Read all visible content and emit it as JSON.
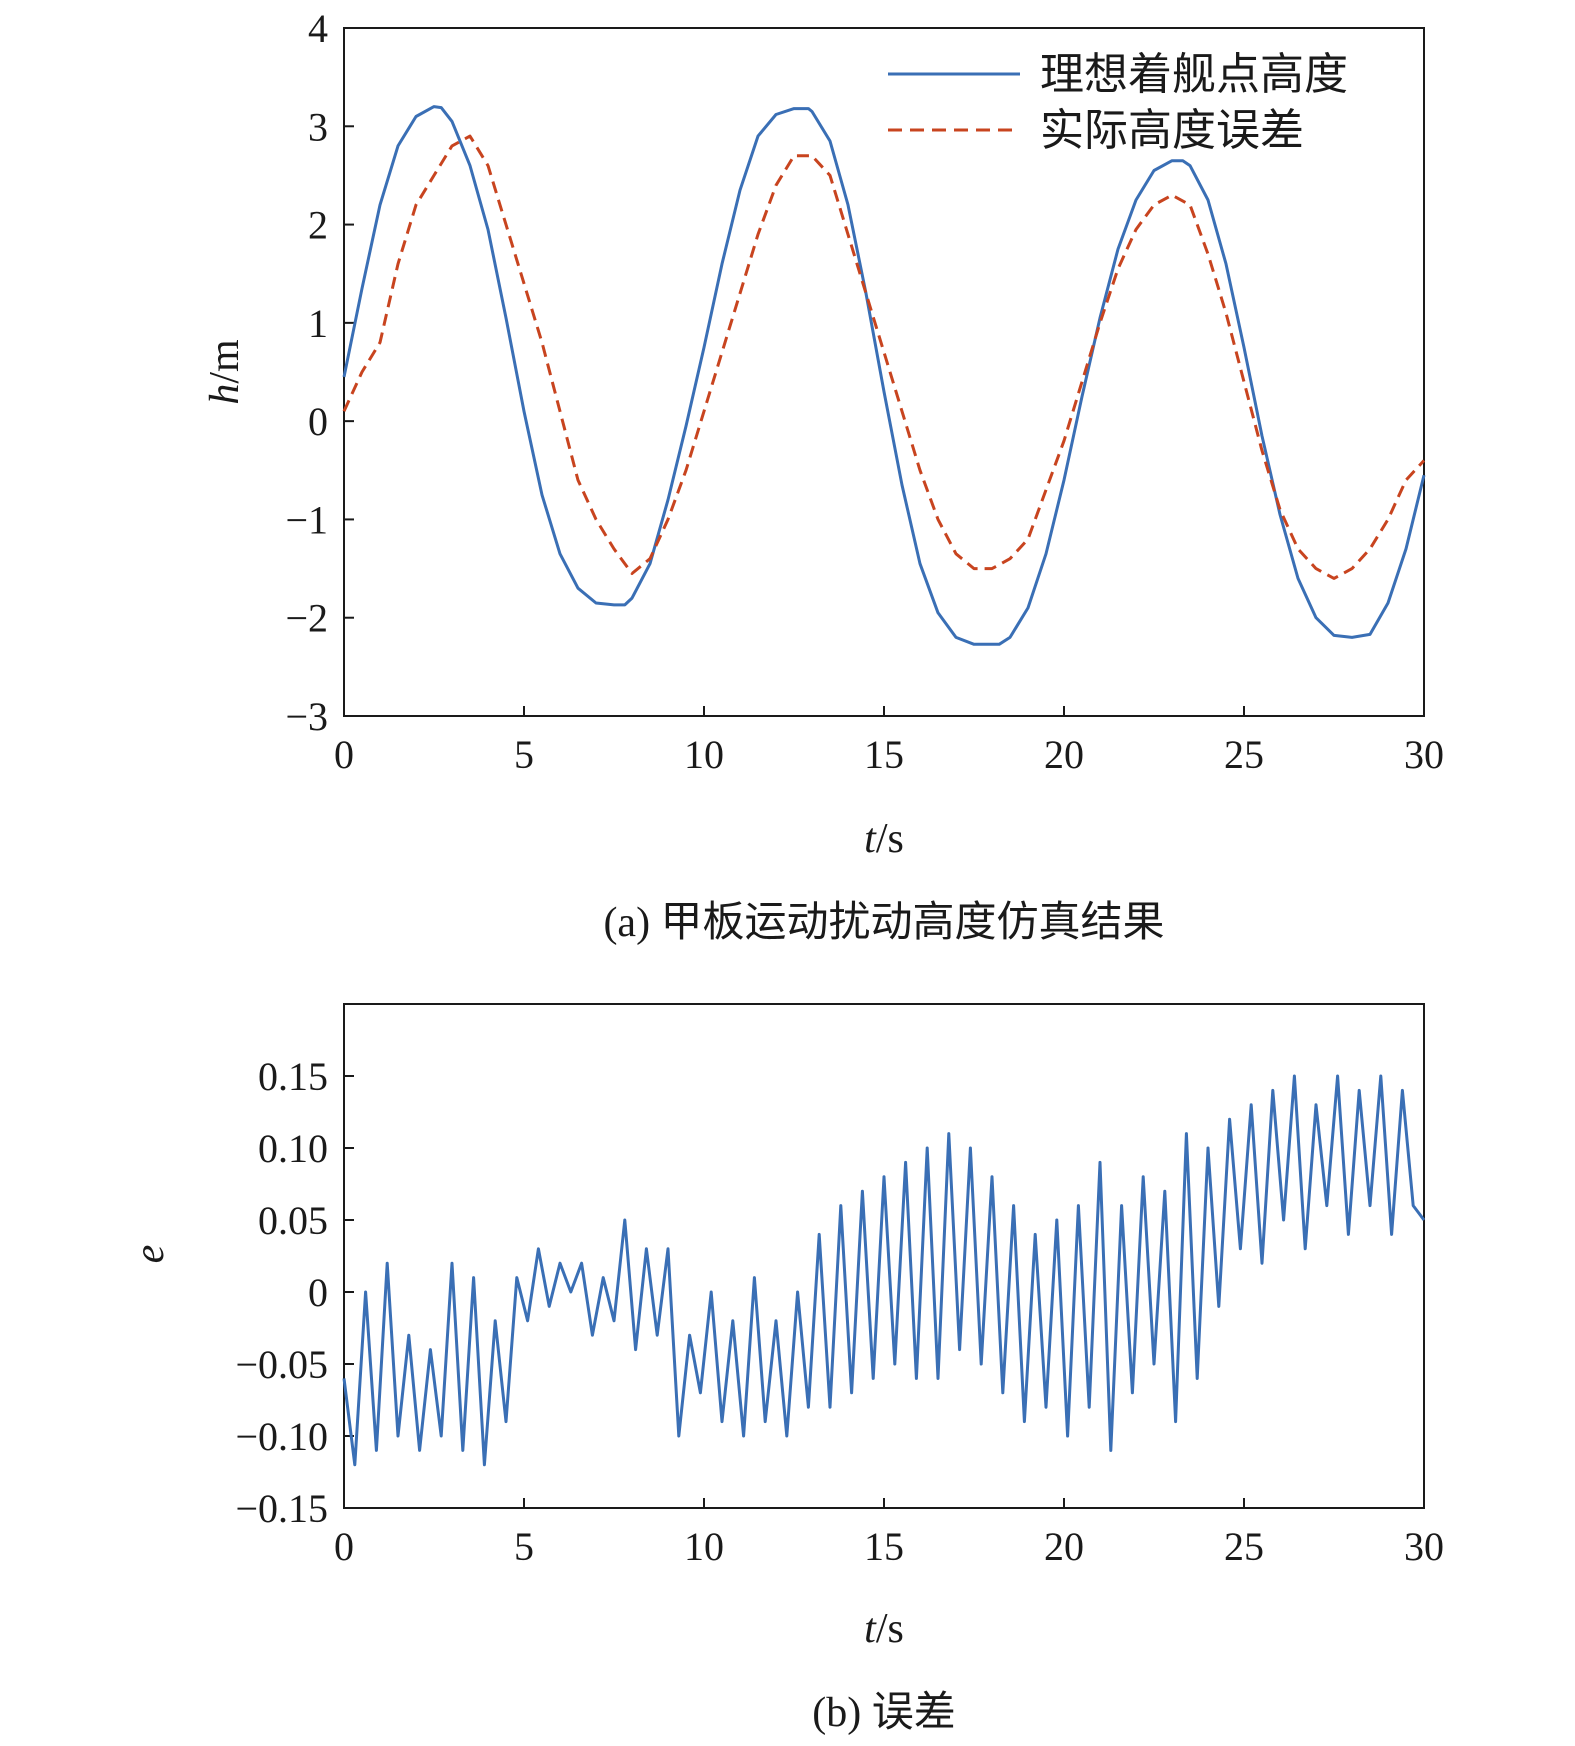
{
  "chart_data": [
    {
      "type": "line",
      "caption": "(a) 甲板运动扰动高度仿真结果",
      "xlabel_var": "t",
      "xlabel_unit": "/s",
      "ylabel_var": "h",
      "ylabel_unit": "/m",
      "xlim": [
        0,
        30
      ],
      "ylim": [
        -3,
        4
      ],
      "xticks": [
        "0",
        "5",
        "10",
        "15",
        "20",
        "25",
        "30"
      ],
      "yticks": [
        "−3",
        "−2",
        "−1",
        "0",
        "1",
        "2",
        "3",
        "4"
      ],
      "legend_position": "top-right",
      "grid": false,
      "series": [
        {
          "name": "理想着舰点高度",
          "color": "#3a6fb5",
          "style": "solid",
          "x": [
            0,
            0.5,
            1,
            1.5,
            2,
            2.5,
            2.7,
            3,
            3.5,
            4,
            4.5,
            5,
            5.5,
            6,
            6.5,
            7,
            7.5,
            7.8,
            8,
            8.5,
            9,
            9.5,
            10,
            10.5,
            11,
            11.5,
            12,
            12.5,
            12.9,
            13,
            13.5,
            14,
            14.5,
            15,
            15.5,
            16,
            16.5,
            17,
            17.5,
            18,
            18.2,
            18.5,
            19,
            19.5,
            20,
            20.5,
            21,
            21.5,
            22,
            22.5,
            23,
            23.3,
            23.5,
            24,
            24.5,
            25,
            25.5,
            26,
            26.5,
            27,
            27.5,
            28,
            28.5,
            29,
            29.5,
            30
          ],
          "y": [
            0.45,
            1.35,
            2.2,
            2.8,
            3.1,
            3.2,
            3.19,
            3.05,
            2.6,
            1.95,
            1.05,
            0.1,
            -0.75,
            -1.35,
            -1.7,
            -1.85,
            -1.87,
            -1.87,
            -1.8,
            -1.45,
            -0.8,
            -0.05,
            0.75,
            1.6,
            2.35,
            2.9,
            3.12,
            3.18,
            3.18,
            3.15,
            2.85,
            2.2,
            1.3,
            0.3,
            -0.65,
            -1.45,
            -1.95,
            -2.2,
            -2.27,
            -2.27,
            -2.27,
            -2.2,
            -1.9,
            -1.35,
            -0.6,
            0.25,
            1.05,
            1.75,
            2.25,
            2.55,
            2.65,
            2.65,
            2.6,
            2.25,
            1.6,
            0.75,
            -0.15,
            -0.95,
            -1.6,
            -2.0,
            -2.18,
            -2.2,
            -2.17,
            -1.85,
            -1.3,
            -0.55
          ]
        },
        {
          "name": "实际高度误差",
          "color": "#c8441f",
          "style": "dashed",
          "x": [
            0,
            0.5,
            1,
            1.5,
            2,
            2.5,
            3,
            3.5,
            4,
            4.5,
            5,
            5.5,
            6,
            6.5,
            7,
            7.5,
            8,
            8.5,
            9,
            9.5,
            10,
            10.5,
            11,
            11.5,
            12,
            12.5,
            13,
            13.5,
            14,
            14.5,
            15,
            15.5,
            16,
            16.5,
            17,
            17.5,
            18,
            18.5,
            19,
            19.5,
            20,
            20.5,
            21,
            21.5,
            22,
            22.5,
            23,
            23.5,
            24,
            24.5,
            25,
            25.5,
            26,
            26.5,
            27,
            27.5,
            28,
            28.5,
            29,
            29.5,
            30
          ],
          "y": [
            0.1,
            0.5,
            0.8,
            1.6,
            2.2,
            2.5,
            2.8,
            2.9,
            2.6,
            2.0,
            1.4,
            0.8,
            0.1,
            -0.6,
            -1.0,
            -1.3,
            -1.55,
            -1.4,
            -1.0,
            -0.5,
            0.1,
            0.7,
            1.3,
            1.9,
            2.4,
            2.7,
            2.7,
            2.5,
            1.9,
            1.3,
            0.7,
            0.1,
            -0.5,
            -1.0,
            -1.35,
            -1.5,
            -1.5,
            -1.4,
            -1.2,
            -0.7,
            -0.2,
            0.4,
            1.0,
            1.55,
            1.95,
            2.2,
            2.3,
            2.2,
            1.7,
            1.1,
            0.4,
            -0.3,
            -0.9,
            -1.3,
            -1.5,
            -1.6,
            -1.5,
            -1.3,
            -1.0,
            -0.6,
            -0.4
          ]
        }
      ]
    },
    {
      "type": "line",
      "caption": "(b) 误差",
      "xlabel_var": "t",
      "xlabel_unit": "/s",
      "ylabel_var": "e",
      "xlim": [
        0,
        30
      ],
      "ylim": [
        -0.15,
        0.2
      ],
      "xticks": [
        "0",
        "5",
        "10",
        "15",
        "20",
        "25",
        "30"
      ],
      "yticks": [
        "−0.15",
        "−0.10",
        "−0.05",
        "0",
        "0.05",
        "0.10",
        "0.15"
      ],
      "ytick_values": [
        -0.15,
        -0.1,
        -0.05,
        0,
        0.05,
        0.1,
        0.15
      ],
      "grid": false,
      "series": [
        {
          "color": "#3a6fb5",
          "style": "solid",
          "x": [
            0,
            0.3,
            0.6,
            0.9,
            1.2,
            1.5,
            1.8,
            2.1,
            2.4,
            2.7,
            3.0,
            3.3,
            3.6,
            3.9,
            4.2,
            4.5,
            4.8,
            5.1,
            5.4,
            5.7,
            6.0,
            6.3,
            6.6,
            6.9,
            7.2,
            7.5,
            7.8,
            8.1,
            8.4,
            8.7,
            9.0,
            9.3,
            9.6,
            9.9,
            10.2,
            10.5,
            10.8,
            11.1,
            11.4,
            11.7,
            12.0,
            12.3,
            12.6,
            12.9,
            13.2,
            13.5,
            13.8,
            14.1,
            14.4,
            14.7,
            15.0,
            15.3,
            15.6,
            15.9,
            16.2,
            16.5,
            16.8,
            17.1,
            17.4,
            17.7,
            18.0,
            18.3,
            18.6,
            18.9,
            19.2,
            19.5,
            19.8,
            20.1,
            20.4,
            20.7,
            21.0,
            21.3,
            21.6,
            21.9,
            22.2,
            22.5,
            22.8,
            23.1,
            23.4,
            23.7,
            24.0,
            24.3,
            24.6,
            24.9,
            25.2,
            25.5,
            25.8,
            26.1,
            26.4,
            26.7,
            27.0,
            27.3,
            27.6,
            27.9,
            28.2,
            28.5,
            28.8,
            29.1,
            29.4,
            29.7,
            30.0
          ],
          "y": [
            -0.06,
            -0.12,
            0.0,
            -0.11,
            0.02,
            -0.1,
            -0.03,
            -0.11,
            -0.04,
            -0.1,
            0.02,
            -0.11,
            0.01,
            -0.12,
            -0.02,
            -0.09,
            0.01,
            -0.02,
            0.03,
            -0.01,
            0.02,
            0.0,
            0.02,
            -0.03,
            0.01,
            -0.02,
            0.05,
            -0.04,
            0.03,
            -0.03,
            0.03,
            -0.1,
            -0.03,
            -0.07,
            0.0,
            -0.09,
            -0.02,
            -0.1,
            0.01,
            -0.09,
            -0.02,
            -0.1,
            0.0,
            -0.08,
            0.04,
            -0.08,
            0.06,
            -0.07,
            0.07,
            -0.06,
            0.08,
            -0.05,
            0.09,
            -0.06,
            0.1,
            -0.06,
            0.11,
            -0.04,
            0.1,
            -0.05,
            0.08,
            -0.07,
            0.06,
            -0.09,
            0.04,
            -0.08,
            0.05,
            -0.1,
            0.06,
            -0.08,
            0.09,
            -0.11,
            0.06,
            -0.07,
            0.08,
            -0.05,
            0.07,
            -0.09,
            0.11,
            -0.06,
            0.1,
            -0.01,
            0.12,
            0.03,
            0.13,
            0.02,
            0.14,
            0.05,
            0.15,
            0.03,
            0.13,
            0.06,
            0.15,
            0.04,
            0.14,
            0.06,
            0.15,
            0.04,
            0.14,
            0.06,
            0.05
          ]
        }
      ]
    }
  ]
}
